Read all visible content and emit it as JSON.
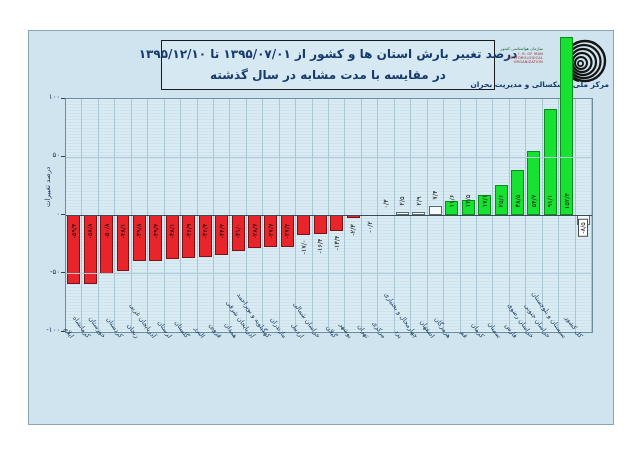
{
  "title": {
    "line1": "درصد تغییر بارش استان ها و کشور از  ۱۳۹۵/۰۷/۰۱ تا ۱۳۹۵/۱۲/۱۰",
    "line2": "در مقایسه با مدت مشابه در سال گذشته"
  },
  "logo": {
    "caption": "مرکز ملی خشکسالی و مدیریت بحران",
    "small_lines_fa": "سازمان هواشناسی کشور",
    "small_lines_en": [
      "I. R. OF IRAN",
      "METEOROLOGICAL",
      "ORGANIZATION"
    ]
  },
  "chart_data": {
    "type": "bar",
    "title": "درصد تغییر بارش استان ها و کشور از ۱۳۹۵/۰۷/۰۱ تا ۱۳۹۵/۱۲/۱۰ در مقایسه با مدت مشابه در سال گذشته",
    "xlabel": "",
    "ylabel": "درصد تغییرات",
    "ylim": [
      -100,
      100
    ],
    "grid": true,
    "legend_position": "none",
    "yticks": [
      {
        "value": 100,
        "label": "۱۰۰"
      },
      {
        "value": 50,
        "label": "۵۰"
      },
      {
        "value": 0,
        "label": "۰"
      },
      {
        "value": -50,
        "label": "-۵۰"
      },
      {
        "value": -100,
        "label": "-۱۰۰"
      }
    ],
    "colors": {
      "red": {
        "fill": "#e9252c",
        "stroke": "#7e1113"
      },
      "green": {
        "fill": "#17e231",
        "stroke": "#0b8a1d"
      },
      "white": {
        "fill": "#f7fbfd",
        "stroke": "#5a6a72"
      }
    },
    "bars": [
      {
        "name": "ایلام",
        "value": -59.4,
        "label": "-۵۹/۴",
        "color": "red"
      },
      {
        "name": "کرمانشاه",
        "value": -58.8,
        "label": "-۵۸/۸",
        "color": "red"
      },
      {
        "name": "خوزستان",
        "value": -50.8,
        "label": "-۵۰/۸",
        "color": "red"
      },
      {
        "name": "کردستان",
        "value": -48.1,
        "label": "-۴۸/۱",
        "color": "red"
      },
      {
        "name": "زنجان",
        "value": -39.8,
        "label": "-۳۹/۸",
        "color": "red"
      },
      {
        "name": "آذربایجان غربی",
        "value": -39.4,
        "label": "-۳۹/۴",
        "color": "red"
      },
      {
        "name": "لرستان",
        "value": -38.1,
        "label": "-۳۸/۱",
        "color": "red"
      },
      {
        "name": "گلستان",
        "value": -36.9,
        "label": "-۳۶/۹",
        "color": "red"
      },
      {
        "name": "البرز",
        "value": -36.4,
        "label": "-۳۶/۴",
        "color": "red"
      },
      {
        "name": "قزوین",
        "value": -34.2,
        "label": "-۳۴/۲",
        "color": "red"
      },
      {
        "name": "همدان",
        "value": -31.0,
        "label": "-۳۱/۰",
        "color": "red"
      },
      {
        "name": "آذربایجان شرقی",
        "value": -28.7,
        "label": "-۲۸/۷",
        "color": "red"
      },
      {
        "name": "کهگیلویه و بویراحمد",
        "value": -27.7,
        "label": "-۲۷/۷",
        "color": "red"
      },
      {
        "name": "مازندران",
        "value": -27.2,
        "label": "-۲۷/۲",
        "color": "red"
      },
      {
        "name": "اردبیل",
        "value": -17.0,
        "label": "-۱۷/۰",
        "color": "red"
      },
      {
        "name": "خراسان شمالی",
        "value": -16.4,
        "label": "-۱۶/۴",
        "color": "red"
      },
      {
        "name": "گیلان",
        "value": -13.4,
        "label": "-۱۳/۴",
        "color": "red"
      },
      {
        "name": "بوشهر",
        "value": -2.3,
        "label": "-۲/۳",
        "color": "red"
      },
      {
        "name": "تهران",
        "value": -0.2,
        "label": "-۰/۲",
        "color": "red"
      },
      {
        "name": "مرکزی",
        "value": 0.3,
        "label": "۰/۳",
        "color": "white"
      },
      {
        "name": "یزد",
        "value": 2.5,
        "label": "۲/۵",
        "color": "white"
      },
      {
        "name": "چهارمحال و بختیاری",
        "value": 2.9,
        "label": "۲/۹",
        "color": "white"
      },
      {
        "name": "اصفهان",
        "value": 7.4,
        "label": "۷/۴",
        "color": "white"
      },
      {
        "name": "هرمزگان",
        "value": 11.6,
        "label": "۱۱/۶",
        "color": "green"
      },
      {
        "name": "قم",
        "value": 12.5,
        "label": "۱۲/۵",
        "color": "green"
      },
      {
        "name": "کرمان",
        "value": 17.1,
        "label": "۱۷/۱",
        "color": "green"
      },
      {
        "name": "سمنان",
        "value": 25.6,
        "label": "۲۵/۶",
        "color": "green"
      },
      {
        "name": "فارس",
        "value": 38.5,
        "label": "۳۸/۵",
        "color": "green"
      },
      {
        "name": "خراسان رضوی",
        "value": 54.7,
        "label": "۵۴/۷",
        "color": "green"
      },
      {
        "name": "خراسان جنوبی",
        "value": 91.1,
        "label": "۹۱/۱",
        "color": "green"
      },
      {
        "name": "سیستان و بلوچستان",
        "value": 152.4,
        "label": "۱۵۲/۴",
        "color": "green"
      },
      {
        "name": "کل کشور",
        "value": -8.5,
        "label": "-۸/۵",
        "color": "white",
        "boxed": true
      }
    ]
  }
}
